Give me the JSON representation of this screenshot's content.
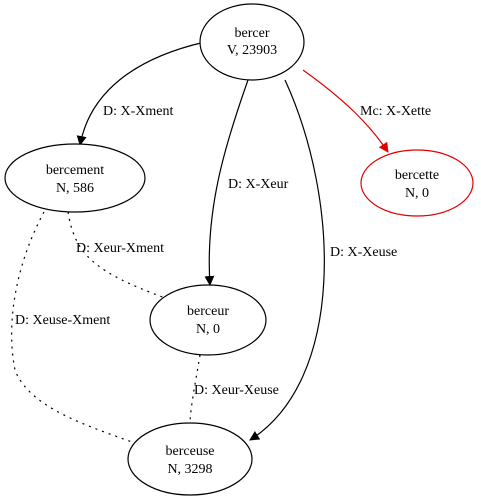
{
  "nodes": {
    "bercer": {
      "name": "bercer",
      "info": "V, 23903",
      "color": "#000000"
    },
    "bercement": {
      "name": "bercement",
      "info": "N, 586",
      "color": "#000000"
    },
    "bercette": {
      "name": "bercette",
      "info": "N, 0",
      "color": "#e00000"
    },
    "berceur": {
      "name": "berceur",
      "info": "N, 0",
      "color": "#000000"
    },
    "berceuse": {
      "name": "berceuse",
      "info": "N, 3298",
      "color": "#000000"
    }
  },
  "edges": {
    "bercer_bercement": {
      "from": "bercer",
      "to": "bercement",
      "label": "D: X-Xment",
      "style": "solid",
      "color": "#000000"
    },
    "bercer_berceur": {
      "from": "bercer",
      "to": "berceur",
      "label": "D: X-Xeur",
      "style": "solid",
      "color": "#000000"
    },
    "bercer_berceuse": {
      "from": "bercer",
      "to": "berceuse",
      "label": "D: X-Xeuse",
      "style": "solid",
      "color": "#000000"
    },
    "bercer_bercette": {
      "from": "bercer",
      "to": "bercette",
      "label": "Mc: X-Xette",
      "style": "solid",
      "color": "#e00000"
    },
    "bercement_berceur": {
      "from": "bercement",
      "to": "berceur",
      "label": "D: Xeur-Xment",
      "style": "dotted",
      "color": "#000000"
    },
    "bercement_berceuse": {
      "from": "bercement",
      "to": "berceuse",
      "label": "D: Xeuse-Xment",
      "style": "dotted",
      "color": "#000000"
    },
    "berceur_berceuse": {
      "from": "berceur",
      "to": "berceuse",
      "label": "D: Xeur-Xeuse",
      "style": "dotted",
      "color": "#000000"
    }
  }
}
